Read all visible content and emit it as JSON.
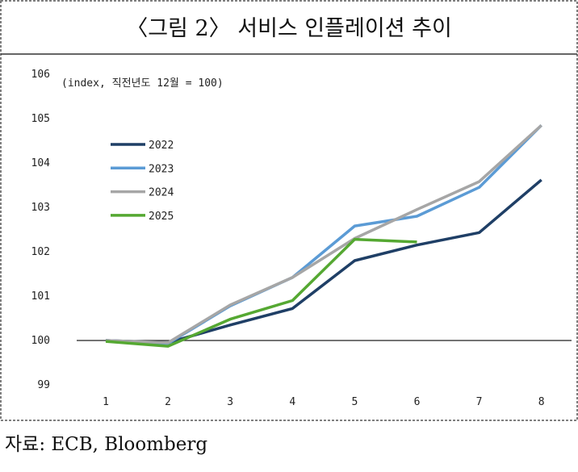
{
  "chart_data": {
    "type": "line",
    "title": "〈그림 2〉 서비스 인플레이션 추이",
    "y_label": "(index, 직전년도 12월 = 100)",
    "source": "자료: ECB, Bloomberg",
    "categories": [
      "1",
      "2",
      "3",
      "4",
      "5",
      "6",
      "7",
      "8"
    ],
    "series": [
      {
        "name": "2022",
        "color": "#1f3f66",
        "values": [
          100,
          99.95,
          100.35,
          100.72,
          101.8,
          102.15,
          102.43,
          103.62
        ]
      },
      {
        "name": "2023",
        "color": "#5b9bd5",
        "values": [
          100,
          99.93,
          100.78,
          101.42,
          102.58,
          102.8,
          103.45,
          104.85
        ]
      },
      {
        "name": "2024",
        "color": "#a6a6a6",
        "values": [
          100,
          99.95,
          100.8,
          101.42,
          102.3,
          102.95,
          103.58,
          104.85
        ]
      },
      {
        "name": "2025",
        "color": "#55a832",
        "values": [
          99.98,
          99.87,
          100.48,
          100.9,
          102.28,
          102.22,
          null,
          null
        ]
      }
    ],
    "ylim": [
      99,
      106
    ],
    "yticks": [
      99,
      100,
      101,
      102,
      103,
      104,
      105,
      106
    ],
    "legend": "upper left"
  }
}
